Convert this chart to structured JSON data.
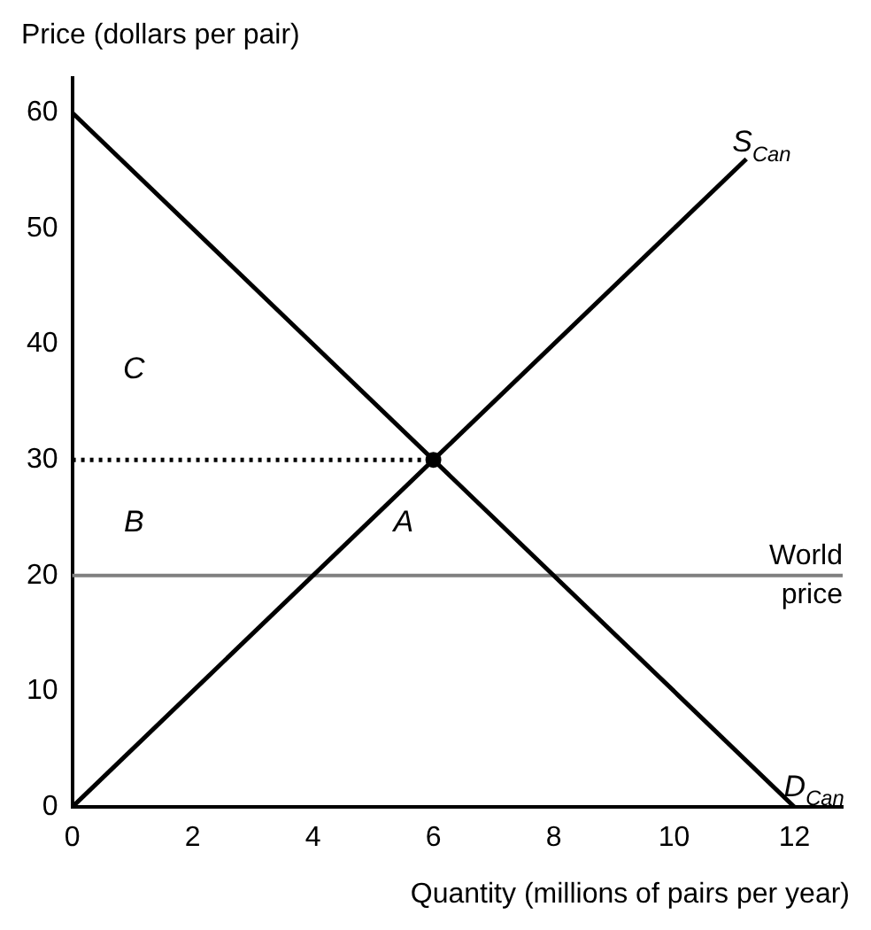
{
  "chart_data": {
    "type": "line",
    "xlabel": "Quantity (millions of pairs per year)",
    "ylabel": "Price (dollars per pair)",
    "series": [
      {
        "name": "S$_{Can}$",
        "color": "#000000",
        "x": [
          0,
          11.2
        ],
        "values": [
          0,
          56
        ]
      },
      {
        "name": "D$_{Can}$",
        "color": "#000000",
        "x": [
          0,
          12
        ],
        "values": [
          60,
          0
        ]
      },
      {
        "color": "#000000",
        "x": [
          0,
          6
        ],
        "values": [
          30,
          30
        ],
        "line_style": "dotted"
      },
      {
        "type": "scatter",
        "color": "#000000",
        "x": [
          6
        ],
        "values": [
          30
        ],
        "marker": "circle"
      }
    ],
    "xlim": [
      0,
      12.8
    ],
    "xticks": [
      0,
      2,
      4,
      6,
      8,
      10,
      12
    ],
    "ylim": [
      0,
      63
    ],
    "yticks": [
      0,
      10,
      20,
      30,
      40,
      50,
      60
    ],
    "grid": false,
    "legend": false,
    "marker": "none",
    "line_style": "solid",
    "ref_lines": [
      {
        "axis": "y",
        "value": 20,
        "label": "World price",
        "color": "#808080"
      }
    ],
    "annotations": [
      "C",
      "B",
      "A"
    ]
  }
}
